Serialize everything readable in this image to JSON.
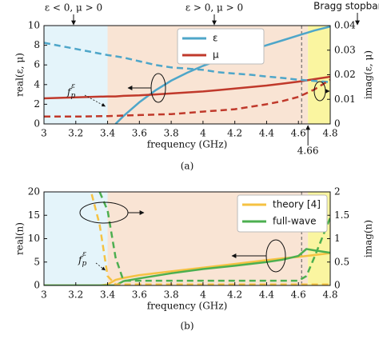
{
  "chart_data": [
    {
      "type": "line",
      "caption": "(a)",
      "xlabel": "frequency (GHz)",
      "ylabel": "real(ε, μ)",
      "y2label": "imag(ε, μ)",
      "xlim": [
        3,
        4.8
      ],
      "xticks": [
        3,
        3.2,
        3.4,
        3.6,
        3.8,
        4,
        4.2,
        4.4,
        4.6,
        4.8
      ],
      "ylim": [
        0,
        10
      ],
      "yticks": [
        0,
        2,
        4,
        6,
        8,
        10
      ],
      "y2lim": [
        0,
        0.04
      ],
      "y2ticks": [
        0,
        0.01,
        0.02,
        0.03,
        0.04
      ],
      "regions": [
        {
          "from": 3,
          "to": 3.4,
          "color": "#e4f4fa",
          "label": "ε < 0, μ > 0"
        },
        {
          "from": 3.4,
          "to": 4.66,
          "color": "#f9e4d4",
          "label": "ε > 0, μ > 0"
        },
        {
          "from": 4.66,
          "to": 4.8,
          "color": "#faf5a0",
          "label": "Bragg stopband"
        }
      ],
      "marker_x": 4.62,
      "fp_label": {
        "base": "f",
        "sub": "p",
        "sup": "ε"
      },
      "x": [
        3,
        3.2,
        3.4,
        3.45,
        3.5,
        3.6,
        3.7,
        3.8,
        3.9,
        4.0,
        4.1,
        4.2,
        4.3,
        4.4,
        4.5,
        4.6,
        4.7,
        4.8
      ],
      "series": [
        {
          "name": "ε",
          "color": "#4ea6c9",
          "style": "solid",
          "values": [
            null,
            null,
            null,
            0,
            0.8,
            2.2,
            3.4,
            4.4,
            5.2,
            5.9,
            6.5,
            7.0,
            7.5,
            8.0,
            8.5,
            9.0,
            9.5,
            9.9
          ]
        },
        {
          "name": "μ",
          "color": "#c0392b",
          "style": "solid",
          "values": [
            2.6,
            2.7,
            2.8,
            2.8,
            2.85,
            2.9,
            3.0,
            3.1,
            3.2,
            3.3,
            3.45,
            3.6,
            3.75,
            3.9,
            4.1,
            4.3,
            4.55,
            4.8
          ]
        },
        {
          "color": "#4ea6c9",
          "style": "dashed",
          "axis": "y2",
          "values": [
            0.033,
            0.0305,
            0.028,
            0.0275,
            0.027,
            0.0255,
            0.024,
            0.023,
            0.0225,
            0.022,
            0.021,
            0.0205,
            0.02,
            0.0193,
            0.0187,
            0.018,
            0.0175,
            0.017
          ]
        },
        {
          "color": "#c0392b",
          "style": "dashed",
          "axis": "y2",
          "values": [
            0.003,
            0.003,
            0.0032,
            0.0033,
            0.0034,
            0.0036,
            0.0038,
            0.004,
            0.0045,
            0.005,
            0.0055,
            0.006,
            0.007,
            0.008,
            0.0093,
            0.011,
            0.014,
            0.018
          ]
        }
      ]
    },
    {
      "type": "line",
      "caption": "(b)",
      "xlabel": "frequency (GHz)",
      "ylabel": "real(n)",
      "y2label": "imag(n)",
      "xlim": [
        3,
        4.8
      ],
      "xticks": [
        3,
        3.2,
        3.4,
        3.6,
        3.8,
        4,
        4.2,
        4.4,
        4.6,
        4.8
      ],
      "ylim": [
        0,
        20
      ],
      "yticks": [
        0,
        5,
        10,
        15,
        20
      ],
      "y2lim": [
        0,
        2
      ],
      "y2ticks": [
        0,
        0.5,
        1,
        1.5,
        2
      ],
      "regions": [
        {
          "from": 3,
          "to": 3.4,
          "color": "#e4f4fa"
        },
        {
          "from": 3.4,
          "to": 4.66,
          "color": "#f9e4d4"
        },
        {
          "from": 4.66,
          "to": 4.8,
          "color": "#faf5a0"
        }
      ],
      "marker_x": 4.62,
      "fp_label": {
        "base": "f",
        "sub": "p",
        "sup": "ε"
      },
      "x": [
        3,
        3.2,
        3.3,
        3.35,
        3.4,
        3.45,
        3.5,
        3.6,
        3.8,
        4.0,
        4.2,
        4.4,
        4.5,
        4.6,
        4.65,
        4.7,
        4.8
      ],
      "series": [
        {
          "name": "theory [4]",
          "color": "#f5c242",
          "style": "solid",
          "values": [
            0,
            0,
            0,
            0,
            0.2,
            1.2,
            1.6,
            2.2,
            3.0,
            3.8,
            4.6,
            5.4,
            5.8,
            6.1,
            6.3,
            6.5,
            6.9
          ]
        },
        {
          "name": "full-wave",
          "color": "#4caf50",
          "style": "solid",
          "values": [
            0,
            0,
            0,
            0,
            0,
            0,
            0.9,
            1.5,
            2.6,
            3.5,
            4.2,
            5.0,
            5.5,
            6.3,
            7.8,
            7.5,
            7.0
          ]
        },
        {
          "color": "#f5c242",
          "style": "dashed",
          "axis": "y2",
          "values": [
            null,
            null,
            1.95,
            1.3,
            0.2,
            0.02,
            0.02,
            0.02,
            0.02,
            0.02,
            0.02,
            0.02,
            0.02,
            0.02,
            0.02,
            0.02,
            0.02
          ]
        },
        {
          "color": "#4caf50",
          "style": "dashed",
          "axis": "y2",
          "values": [
            null,
            null,
            null,
            2.0,
            1.6,
            0.6,
            0.1,
            0.1,
            0.1,
            0.1,
            0.1,
            0.1,
            0.1,
            0.1,
            0.2,
            0.6,
            1.45
          ]
        }
      ]
    }
  ]
}
